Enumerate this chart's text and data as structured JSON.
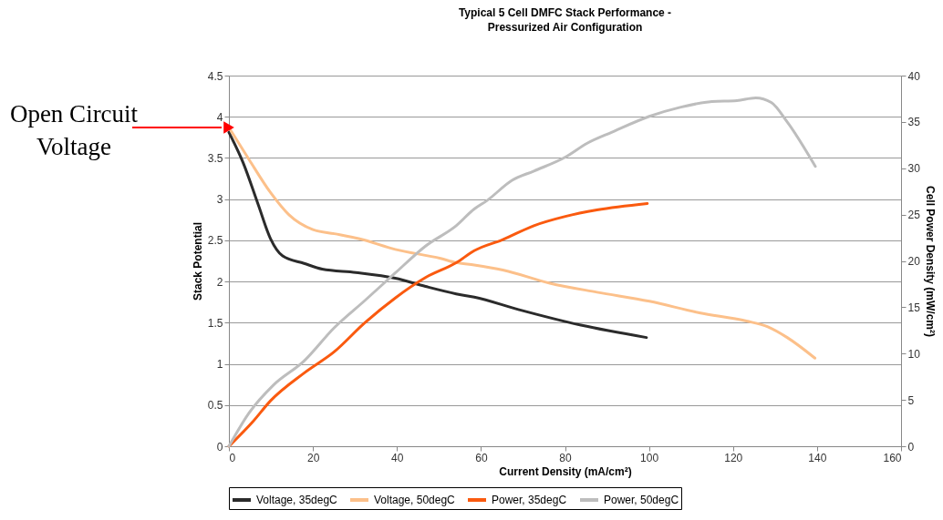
{
  "chart_data": {
    "type": "line",
    "title": "Typical 5 Cell DMFC Stack Performance -",
    "subtitle": "Pressurized Air Configuration",
    "xlabel": "Current Density (mA/cm²)",
    "ylabel": "Stack Potential",
    "y2label": "Cell Power Density (mW/cm²)",
    "xlim": [
      0,
      160
    ],
    "xticks": [
      0,
      20,
      40,
      60,
      80,
      100,
      120,
      140,
      160
    ],
    "ylim": [
      0,
      4.5
    ],
    "yticks": [
      0,
      0.5,
      1,
      1.5,
      2,
      2.5,
      3,
      3.5,
      4,
      4.5
    ],
    "y2lim": [
      0,
      40
    ],
    "y2ticks": [
      0,
      5,
      10,
      15,
      20,
      25,
      30,
      35,
      40
    ],
    "grid": "y",
    "legend": "bottom",
    "annotations": [
      {
        "text": "Open Circuit\nVoltage",
        "x": 0,
        "y": 3.87
      }
    ],
    "series": [
      {
        "name": "Voltage, 35degC",
        "color": "#2b2b2b",
        "x": [
          0,
          3.4,
          7,
          9.9,
          12.8,
          17.9,
          22.2,
          30.2,
          39.6,
          46.8,
          54.1,
          58.4,
          68.9,
          83.8,
          99.4
        ],
        "values": [
          3.81,
          3.44,
          2.93,
          2.52,
          2.31,
          2.22,
          2.15,
          2.11,
          2.04,
          1.94,
          1.85,
          1.81,
          1.66,
          1.47,
          1.32
        ]
      },
      {
        "name": "Voltage, 50degC",
        "color": "#fcc08a",
        "x": [
          0,
          4.8,
          9.9,
          14.3,
          20,
          25.1,
          30.9,
          39.6,
          50.4,
          54.1,
          58.4,
          65.2,
          76.4,
          87.6,
          100.1,
          112,
          123.2,
          128.3,
          132.9,
          139.5
        ],
        "values": [
          3.87,
          3.48,
          3.08,
          2.81,
          2.63,
          2.58,
          2.52,
          2.39,
          2.28,
          2.23,
          2.2,
          2.14,
          1.98,
          1.87,
          1.76,
          1.62,
          1.52,
          1.45,
          1.32,
          1.07
        ]
      },
      {
        "name": "Power, 35degC",
        "color": "#fa5a0f",
        "axis": "y2",
        "x": [
          0,
          5.6,
          9.9,
          17.9,
          25.1,
          32.3,
          39.6,
          46.8,
          54.1,
          58.4,
          65.2,
          72.6,
          80.1,
          87.6,
          99.6
        ],
        "values": [
          0,
          2.6,
          4.9,
          7.9,
          10.2,
          13.3,
          16.0,
          18.2,
          19.8,
          21.1,
          22.3,
          23.8,
          24.8,
          25.5,
          26.2
        ]
      },
      {
        "name": "Power, 50degC",
        "color": "#bdbdbd",
        "axis": "y2",
        "x": [
          0,
          4.8,
          10.6,
          17.9,
          25.1,
          32.3,
          39.6,
          46.8,
          54.1,
          58.4,
          61.4,
          67.4,
          72.6,
          80.1,
          85.3,
          91.2,
          100.1,
          107.6,
          115,
          120.9,
          125.4,
          129.1,
          132.9,
          139.6
        ],
        "values": [
          0,
          3.6,
          6.6,
          9.2,
          12.8,
          15.7,
          18.7,
          21.6,
          23.8,
          25.6,
          26.5,
          28.7,
          29.7,
          31.2,
          32.7,
          33.9,
          35.6,
          36.6,
          37.2,
          37.3,
          37.6,
          37.1,
          35.0,
          30.2
        ]
      }
    ]
  }
}
